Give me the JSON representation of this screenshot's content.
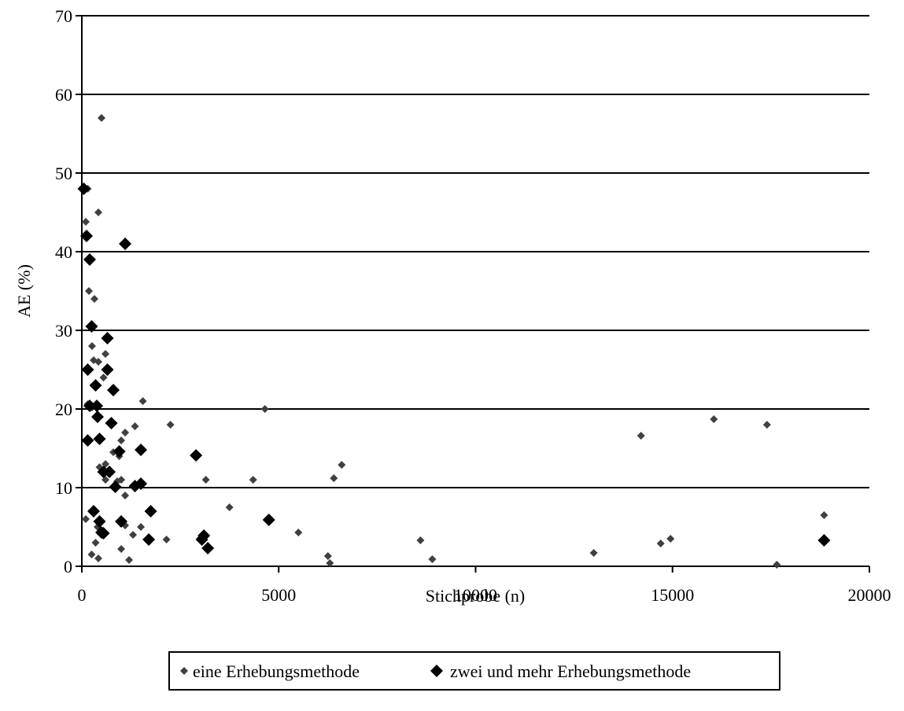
{
  "chart_data": {
    "type": "scatter",
    "title": "",
    "xlabel": "Stichprobe (n)",
    "ylabel": "AE (%)",
    "xlim": [
      0,
      20000
    ],
    "ylim": [
      0,
      70
    ],
    "x_ticks": [
      "0",
      "5000",
      "10000",
      "15000",
      "20000"
    ],
    "y_ticks": [
      "0",
      "10",
      "20",
      "30",
      "40",
      "50",
      "60",
      "70"
    ],
    "grid": "horizontal",
    "legend_position": "bottom",
    "colors": {
      "series1": "#404040",
      "series2": "#000000"
    },
    "series": [
      {
        "name": "eine Erhebungsmethode",
        "marker": "small-diamond",
        "points": [
          [
            500,
            57
          ],
          [
            150,
            48
          ],
          [
            100,
            43.8
          ],
          [
            420,
            45
          ],
          [
            180,
            35
          ],
          [
            320,
            34
          ],
          [
            260,
            28
          ],
          [
            300,
            26.2
          ],
          [
            420,
            26
          ],
          [
            600,
            27
          ],
          [
            550,
            24
          ],
          [
            150,
            20.6
          ],
          [
            260,
            20.2
          ],
          [
            2250,
            18
          ],
          [
            1550,
            21
          ],
          [
            1350,
            17.8
          ],
          [
            1000,
            16
          ],
          [
            1100,
            17
          ],
          [
            800,
            14.5
          ],
          [
            950,
            14
          ],
          [
            600,
            13
          ],
          [
            450,
            12.6
          ],
          [
            550,
            11.8
          ],
          [
            600,
            11
          ],
          [
            900,
            10.8
          ],
          [
            1000,
            11
          ],
          [
            1100,
            9
          ],
          [
            100,
            6
          ],
          [
            400,
            5
          ],
          [
            1100,
            5.2
          ],
          [
            1300,
            4
          ],
          [
            1500,
            5
          ],
          [
            350,
            3
          ],
          [
            250,
            1.5
          ],
          [
            420,
            1
          ],
          [
            1000,
            2.2
          ],
          [
            1200,
            0.8
          ],
          [
            2150,
            3.4
          ],
          [
            3000,
            3.5
          ],
          [
            3150,
            11
          ],
          [
            3750,
            7.5
          ],
          [
            4350,
            11
          ],
          [
            4650,
            20
          ],
          [
            5500,
            4.3
          ],
          [
            6250,
            1.3
          ],
          [
            6300,
            0.4
          ],
          [
            6400,
            11.2
          ],
          [
            6600,
            12.9
          ],
          [
            8600,
            3.3
          ],
          [
            8900,
            0.9
          ],
          [
            13000,
            1.7
          ],
          [
            14200,
            16.6
          ],
          [
            14700,
            2.9
          ],
          [
            14950,
            3.5
          ],
          [
            16050,
            18.7
          ],
          [
            17400,
            18
          ],
          [
            17650,
            0.2
          ],
          [
            18850,
            6.5
          ]
        ]
      },
      {
        "name": "zwei und mehr Erhebungsmethode",
        "marker": "large-diamond",
        "points": [
          [
            50,
            48
          ],
          [
            120,
            42
          ],
          [
            200,
            39
          ],
          [
            1100,
            41
          ],
          [
            250,
            30.5
          ],
          [
            650,
            29
          ],
          [
            150,
            25
          ],
          [
            650,
            25
          ],
          [
            350,
            23
          ],
          [
            800,
            22.4
          ],
          [
            200,
            20.4
          ],
          [
            380,
            20.4
          ],
          [
            400,
            19
          ],
          [
            750,
            18.2
          ],
          [
            450,
            16.2
          ],
          [
            150,
            16
          ],
          [
            1500,
            14.8
          ],
          [
            950,
            14.6
          ],
          [
            2900,
            14.1
          ],
          [
            700,
            12
          ],
          [
            550,
            12
          ],
          [
            1500,
            10.5
          ],
          [
            1350,
            10.2
          ],
          [
            850,
            10.1
          ],
          [
            300,
            7
          ],
          [
            1750,
            7
          ],
          [
            450,
            5.7
          ],
          [
            1000,
            5.7
          ],
          [
            4750,
            5.9
          ],
          [
            500,
            4.3
          ],
          [
            550,
            4.2
          ],
          [
            3100,
            3.9
          ],
          [
            3050,
            3.4
          ],
          [
            1700,
            3.4
          ],
          [
            3200,
            2.3
          ],
          [
            18850,
            3.3
          ]
        ]
      }
    ]
  }
}
